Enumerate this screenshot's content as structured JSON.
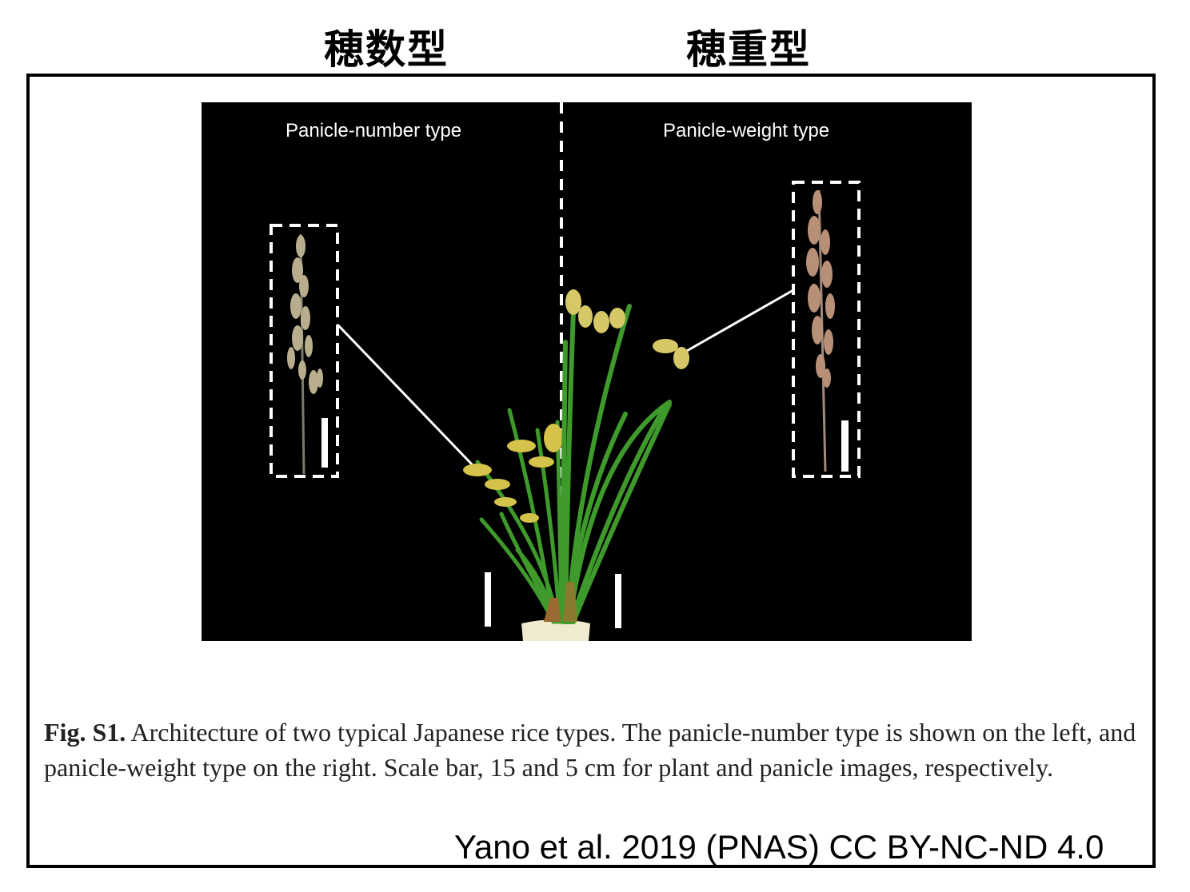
{
  "header": {
    "left_label": "穂数型",
    "right_label": "穂重型"
  },
  "figure": {
    "left_title": "Panicle-number type",
    "right_title": "Panicle-weight type"
  },
  "caption": {
    "label": "Fig. S1.",
    "text": " Architecture of two typical Japanese rice types. The panicle-number type is shown on the left, and panicle-weight type on the right. Scale bar, 15 and 5 cm for plant and panicle images, respectively."
  },
  "credit": "Yano et al. 2019 (PNAS) CC BY-NC-ND 4.0",
  "colors": {
    "background": "#000000",
    "leaf": "#3f9a2c",
    "panicle_left": "#b8ae8e",
    "panicle_right": "#b89078",
    "pot": "#f0ead0"
  }
}
